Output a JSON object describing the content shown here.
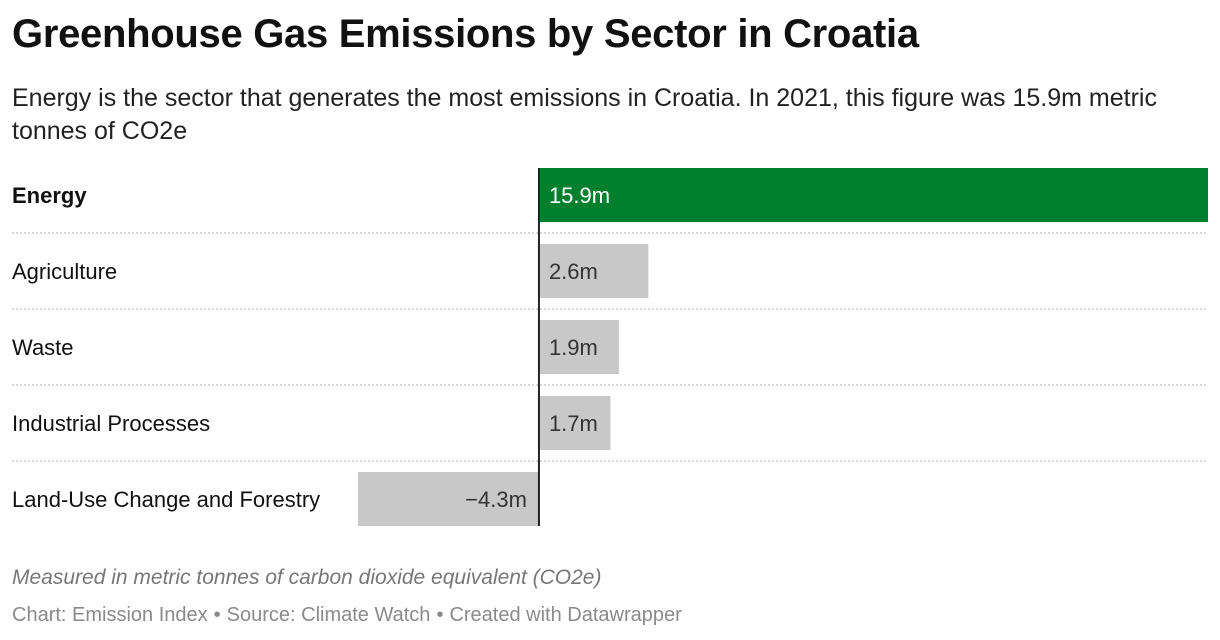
{
  "title": "Greenhouse Gas Emissions by Sector in Croatia",
  "subtitle": "Energy is the sector that generates the most emissions in Croatia. In 2021, this figure was 15.9m metric tonnes of CO2e",
  "notes": "Measured in metric tonnes of carbon dioxide equivalent (CO2e)",
  "footer": {
    "chart": "Chart: Emission Index",
    "separator": "•",
    "source": "Source: Climate Watch",
    "created": "Created with Datawrapper"
  },
  "colors": {
    "highlight": "#00802f",
    "default": "#c8c8c8",
    "axis": "#222222",
    "gridline": "#cccccc"
  },
  "chart_data": {
    "type": "bar",
    "orientation": "horizontal",
    "categories": [
      "Energy",
      "Agriculture",
      "Waste",
      "Industrial Processes",
      "Land-Use Change and Forestry"
    ],
    "values": [
      15.9,
      2.6,
      1.9,
      1.7,
      -4.3
    ],
    "value_labels": [
      "15.9m",
      "2.6m",
      "1.9m",
      "1.7m",
      "−4.3m"
    ],
    "highlighted": [
      "Energy"
    ],
    "unit": "metric tonnes of CO2e (millions)",
    "xlim": [
      -4.3,
      15.9
    ],
    "grid": false
  }
}
